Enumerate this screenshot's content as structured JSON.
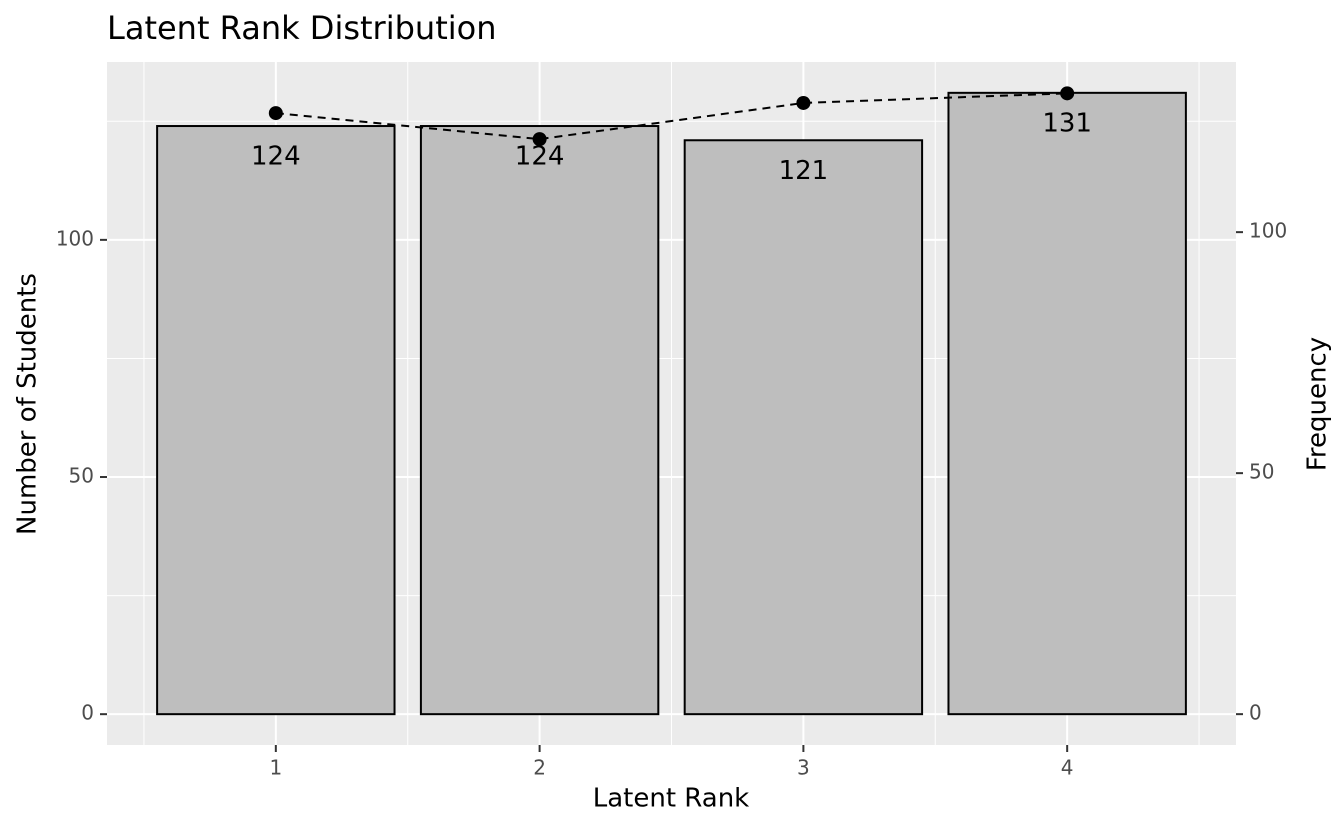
{
  "chart_data": {
    "type": "combo",
    "title": "Latent Rank Distribution",
    "x_label": "Latent Rank",
    "y_label": "Number of Students",
    "y2_label": "Frequency",
    "x": [
      1,
      2,
      3,
      4
    ],
    "series": [
      {
        "type": "bar",
        "color": "#bebebe",
        "values": [
          124,
          124,
          121,
          131
        ]
      },
      {
        "type": "line",
        "color": "#000000",
        "axis": "y2",
        "dashed": true,
        "values": [
          124.7,
          119.3,
          126.8,
          128.8
        ]
      }
    ],
    "xlim": [
      0.36,
      4.64
    ],
    "xticks": [
      1,
      2,
      3,
      4
    ],
    "xminorticks": [
      0.5,
      1.5,
      2.5,
      3.5,
      4.5
    ],
    "ylim": [
      -6.5,
      137.5
    ],
    "yticks": [
      0,
      50,
      100
    ],
    "yminorticks": [
      25,
      75,
      125
    ],
    "y2lim": [
      -6.4,
      135.3
    ],
    "y2ticks": [
      0,
      50,
      100
    ],
    "grid": true
  }
}
